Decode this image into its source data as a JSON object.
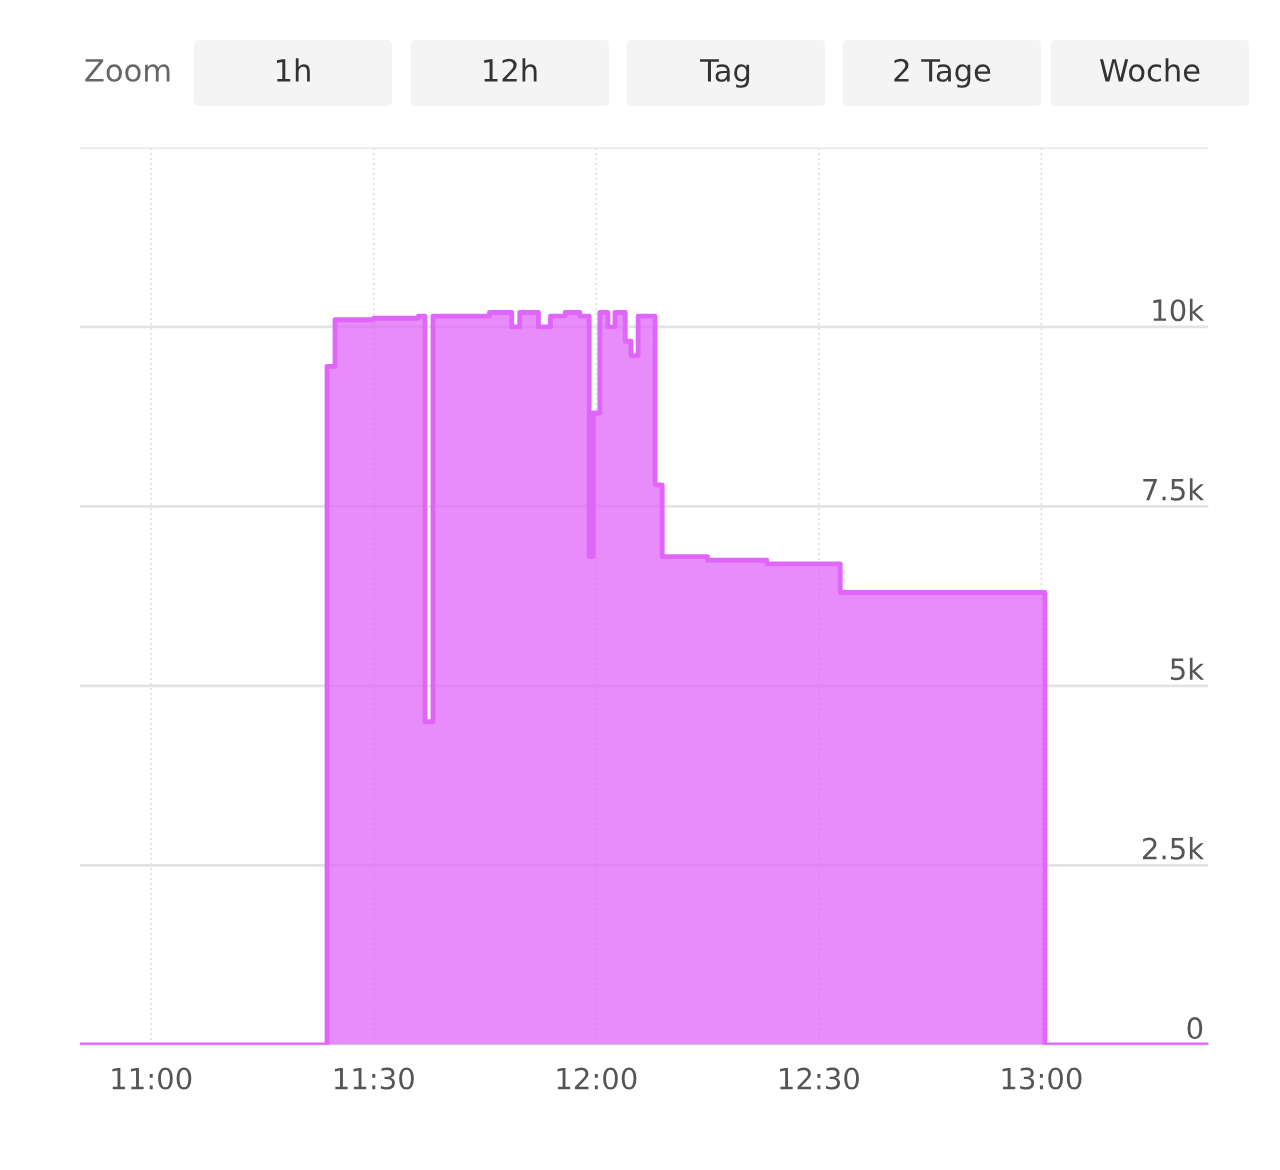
{
  "chart_data": {
    "type": "area",
    "x": [
      10.84,
      11.395,
      11.413,
      11.5,
      11.6,
      11.615,
      11.633,
      11.76,
      11.81,
      11.828,
      11.87,
      11.897,
      11.93,
      11.963,
      11.984,
      11.993,
      12.008,
      12.026,
      12.042,
      12.065,
      12.078,
      12.094,
      12.132,
      12.148,
      12.25,
      12.383,
      12.548,
      13.008,
      13.375
    ],
    "series": [
      {
        "color": "#e066fa",
        "values": [
          0,
          9450,
          10100,
          10120,
          10150,
          4500,
          10150,
          10200,
          10000,
          10200,
          10000,
          10150,
          10200,
          10150,
          6800,
          8800,
          10200,
          10000,
          10200,
          9800,
          9600,
          10150,
          7800,
          6800,
          6750,
          6700,
          6300,
          0,
          0
        ]
      }
    ],
    "xlim": [
      10.84,
      13.375
    ],
    "xticks": [
      {
        "value": 11,
        "label": "11:00"
      },
      {
        "value": 11.5,
        "label": "11:30"
      },
      {
        "value": 12,
        "label": "12:00"
      },
      {
        "value": 12.5,
        "label": "12:30"
      },
      {
        "value": 13,
        "label": "13:00"
      }
    ],
    "ylim": [
      0,
      12500
    ],
    "yticks": [
      {
        "value": 0,
        "label": "0"
      },
      {
        "value": 2500,
        "label": "2.5k"
      },
      {
        "value": 5000,
        "label": "5k"
      },
      {
        "value": 7500,
        "label": "7.5k"
      },
      {
        "value": 10000,
        "label": "10k"
      },
      {
        "value": 12500,
        "label": null
      }
    ],
    "grid": true,
    "annotations": [
      "Zoom",
      "1h",
      "12h",
      "Tag",
      "2 Tage",
      "Woche"
    ]
  }
}
